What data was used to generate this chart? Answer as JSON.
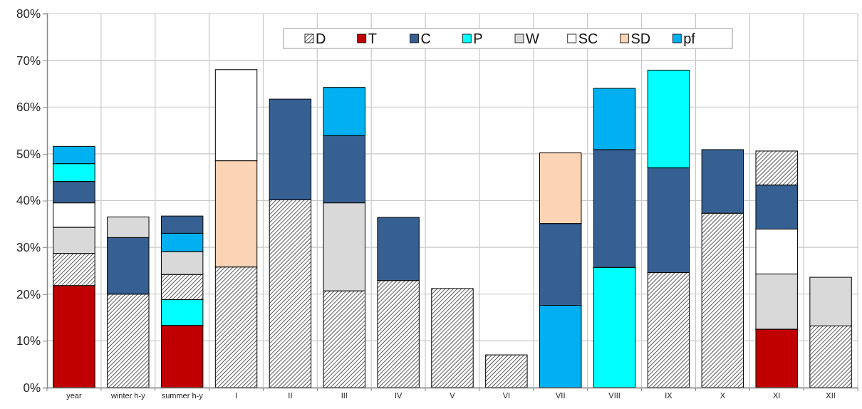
{
  "chart_data": {
    "type": "bar",
    "categories": [
      "year",
      "winter h-y",
      "summer h-y",
      "I",
      "II",
      "III",
      "IV",
      "V",
      "VI",
      "VII",
      "VIII",
      "IX",
      "X",
      "XI",
      "XII"
    ],
    "series": [
      {
        "name": "D",
        "color": "#000000",
        "values": [
          6.9,
          20.0,
          5.4,
          25.8,
          40.2,
          20.7,
          22.9,
          21.2,
          7.0,
          null,
          null,
          24.6,
          37.3,
          7.3,
          13.2
        ],
        "base": [
          21.8,
          0,
          18.8,
          0,
          0,
          0,
          0,
          0,
          0,
          null,
          null,
          0,
          0,
          43.3,
          0
        ]
      },
      {
        "name": "T",
        "color": "#c00000",
        "values": [
          21.8,
          null,
          13.3,
          null,
          null,
          null,
          null,
          null,
          null,
          null,
          null,
          null,
          null,
          12.5,
          null
        ],
        "base": [
          0,
          null,
          0,
          null,
          null,
          null,
          null,
          null,
          null,
          null,
          null,
          null,
          null,
          0,
          null
        ]
      },
      {
        "name": "C",
        "color": "#366092",
        "values": [
          4.6,
          12.1,
          3.7,
          null,
          21.5,
          14.4,
          13.5,
          null,
          null,
          17.5,
          25.2,
          22.4,
          13.6,
          9.4,
          null
        ],
        "base": [
          39.5,
          20.0,
          33.0,
          null,
          40.2,
          39.5,
          22.9,
          null,
          null,
          17.6,
          25.7,
          24.6,
          37.3,
          33.9,
          null
        ]
      },
      {
        "name": "P",
        "color": "#00ffff",
        "values": [
          3.8,
          null,
          5.5,
          null,
          null,
          null,
          null,
          null,
          null,
          null,
          25.7,
          20.9,
          null,
          null,
          null
        ],
        "base": [
          44.1,
          null,
          13.3,
          null,
          null,
          null,
          null,
          null,
          null,
          null,
          0,
          47.0,
          null,
          null,
          null
        ]
      },
      {
        "name": "W",
        "color": "#d9d9d9",
        "values": [
          5.6,
          4.4,
          4.9,
          null,
          null,
          18.8,
          null,
          null,
          null,
          null,
          null,
          null,
          null,
          11.8,
          10.4
        ],
        "base": [
          28.7,
          32.1,
          24.2,
          null,
          null,
          20.7,
          null,
          null,
          null,
          null,
          null,
          null,
          null,
          12.5,
          13.2
        ]
      },
      {
        "name": "SC",
        "color": "#ffffff",
        "values": [
          5.2,
          null,
          null,
          19.5,
          null,
          null,
          null,
          null,
          null,
          null,
          null,
          null,
          null,
          9.6,
          null
        ],
        "base": [
          34.3,
          null,
          null,
          48.5,
          null,
          null,
          null,
          null,
          null,
          null,
          null,
          null,
          null,
          24.3,
          null
        ]
      },
      {
        "name": "SD",
        "color": "#fad4b4",
        "values": [
          null,
          null,
          null,
          22.7,
          null,
          null,
          null,
          null,
          null,
          15.1,
          null,
          null,
          null,
          null,
          null
        ],
        "base": [
          null,
          null,
          null,
          25.8,
          null,
          null,
          null,
          null,
          null,
          35.1,
          null,
          null,
          null,
          null,
          null
        ]
      },
      {
        "name": "pf",
        "color": "#00b0f0",
        "values": [
          3.7,
          null,
          3.9,
          null,
          null,
          10.3,
          null,
          null,
          null,
          17.6,
          13.1,
          null,
          null,
          null,
          null
        ],
        "base": [
          47.9,
          null,
          29.1,
          null,
          null,
          53.9,
          null,
          null,
          null,
          0,
          50.9,
          null,
          null,
          null,
          null
        ]
      }
    ],
    "ylim": [
      0,
      80
    ],
    "yticks": [
      {
        "value": 0,
        "label": "0%"
      },
      {
        "value": 10,
        "label": "10%"
      },
      {
        "value": 20,
        "label": "20%"
      },
      {
        "value": 30,
        "label": "30%"
      },
      {
        "value": 40,
        "label": "40%"
      },
      {
        "value": 50,
        "label": "50%"
      },
      {
        "value": 60,
        "label": "60%"
      },
      {
        "value": 70,
        "label": "70%"
      },
      {
        "value": 80,
        "label": "80%"
      }
    ],
    "grid": true,
    "legend": "top"
  }
}
